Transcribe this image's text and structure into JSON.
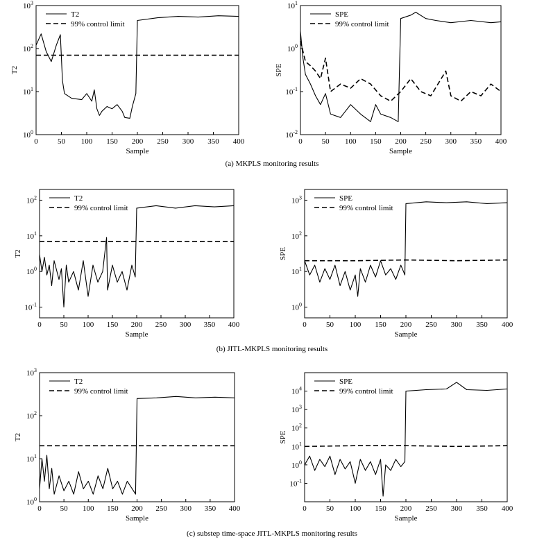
{
  "chart_data": [
    {
      "id": "a-t2",
      "type": "line",
      "panel": "(a)",
      "scale": "log",
      "xlabel": "Sample",
      "ylabel": "T2",
      "xlim": [
        0,
        400
      ],
      "ylim": [
        1,
        1000
      ],
      "xticks": [
        "0",
        "50",
        "100",
        "150",
        "200",
        "250",
        "300",
        "350",
        "400"
      ],
      "yticks": [
        "10^0",
        "10^1",
        "10^2",
        "10^3"
      ],
      "legend_position": "top-left",
      "series": [
        {
          "name": "T2",
          "style": "solid",
          "values": [
            [
              0,
              120
            ],
            [
              10,
              220
            ],
            [
              20,
              85
            ],
            [
              30,
              50
            ],
            [
              40,
              120
            ],
            [
              48,
              210
            ],
            [
              52,
              18
            ],
            [
              56,
              9
            ],
            [
              70,
              7
            ],
            [
              90,
              6.5
            ],
            [
              100,
              9
            ],
            [
              110,
              6
            ],
            [
              115,
              11
            ],
            [
              120,
              4
            ],
            [
              125,
              2.8
            ],
            [
              130,
              3.5
            ],
            [
              140,
              4.5
            ],
            [
              150,
              4
            ],
            [
              160,
              5
            ],
            [
              170,
              3.5
            ],
            [
              175,
              2.5
            ],
            [
              185,
              2.4
            ],
            [
              190,
              4.5
            ],
            [
              197,
              9
            ],
            [
              200,
              450
            ],
            [
              240,
              520
            ],
            [
              280,
              560
            ],
            [
              320,
              540
            ],
            [
              360,
              580
            ],
            [
              400,
              560
            ]
          ]
        },
        {
          "name": "99% control limit",
          "style": "dashed",
          "values": [
            [
              0,
              70
            ],
            [
              400,
              70
            ]
          ]
        }
      ]
    },
    {
      "id": "a-spe",
      "type": "line",
      "panel": "(a)",
      "scale": "log",
      "xlabel": "Sample",
      "ylabel": "SPE",
      "xlim": [
        0,
        400
      ],
      "ylim": [
        0.01,
        10
      ],
      "xticks": [
        "0",
        "50",
        "100",
        "150",
        "200",
        "250",
        "300",
        "350",
        "400"
      ],
      "yticks": [
        "10^-2",
        "10^-1",
        "10^0",
        "10^1"
      ],
      "legend_position": "top-left",
      "series": [
        {
          "name": "SPE",
          "style": "solid",
          "values": [
            [
              0,
              2.5
            ],
            [
              5,
              0.6
            ],
            [
              10,
              0.25
            ],
            [
              20,
              0.15
            ],
            [
              30,
              0.08
            ],
            [
              40,
              0.05
            ],
            [
              50,
              0.09
            ],
            [
              60,
              0.03
            ],
            [
              80,
              0.025
            ],
            [
              100,
              0.05
            ],
            [
              120,
              0.03
            ],
            [
              140,
              0.02
            ],
            [
              150,
              0.05
            ],
            [
              160,
              0.03
            ],
            [
              180,
              0.025
            ],
            [
              195,
              0.02
            ],
            [
              200,
              5
            ],
            [
              220,
              6
            ],
            [
              230,
              7
            ],
            [
              250,
              5
            ],
            [
              270,
              4.5
            ],
            [
              300,
              4
            ],
            [
              340,
              4.5
            ],
            [
              380,
              4
            ],
            [
              400,
              4.2
            ]
          ]
        },
        {
          "name": "99% control limit",
          "style": "dashed",
          "values": [
            [
              0,
              1.5
            ],
            [
              10,
              0.5
            ],
            [
              20,
              0.4
            ],
            [
              30,
              0.3
            ],
            [
              40,
              0.2
            ],
            [
              50,
              0.6
            ],
            [
              60,
              0.1
            ],
            [
              80,
              0.15
            ],
            [
              100,
              0.12
            ],
            [
              120,
              0.2
            ],
            [
              140,
              0.15
            ],
            [
              160,
              0.08
            ],
            [
              180,
              0.06
            ],
            [
              200,
              0.1
            ],
            [
              220,
              0.2
            ],
            [
              240,
              0.1
            ],
            [
              260,
              0.08
            ],
            [
              290,
              0.3
            ],
            [
              300,
              0.08
            ],
            [
              320,
              0.06
            ],
            [
              340,
              0.1
            ],
            [
              360,
              0.08
            ],
            [
              380,
              0.15
            ],
            [
              400,
              0.1
            ]
          ]
        }
      ]
    },
    {
      "id": "b-t2",
      "type": "line",
      "panel": "(b)",
      "scale": "log",
      "xlabel": "Sample",
      "ylabel": "T2",
      "xlim": [
        0,
        400
      ],
      "ylim": [
        0.05,
        200
      ],
      "xticks": [
        "0",
        "50",
        "100",
        "150",
        "200",
        "250",
        "300",
        "350",
        "400"
      ],
      "yticks": [
        "10^-1",
        "10^0",
        "10^1",
        "10^2"
      ],
      "legend_position": "top-left",
      "series": [
        {
          "name": "T2",
          "style": "solid",
          "values": [
            [
              0,
              3
            ],
            [
              5,
              1
            ],
            [
              10,
              2.5
            ],
            [
              15,
              0.8
            ],
            [
              20,
              1.5
            ],
            [
              25,
              0.4
            ],
            [
              30,
              2
            ],
            [
              40,
              0.6
            ],
            [
              45,
              1.2
            ],
            [
              50,
              0.1
            ],
            [
              55,
              1.5
            ],
            [
              60,
              0.5
            ],
            [
              70,
              1
            ],
            [
              80,
              0.3
            ],
            [
              90,
              2
            ],
            [
              100,
              0.2
            ],
            [
              110,
              1.5
            ],
            [
              120,
              0.5
            ],
            [
              130,
              1
            ],
            [
              138,
              9
            ],
            [
              140,
              0.3
            ],
            [
              150,
              1.5
            ],
            [
              160,
              0.5
            ],
            [
              170,
              1
            ],
            [
              180,
              0.3
            ],
            [
              190,
              1.5
            ],
            [
              197,
              0.7
            ],
            [
              200,
              60
            ],
            [
              240,
              70
            ],
            [
              280,
              60
            ],
            [
              320,
              70
            ],
            [
              360,
              65
            ],
            [
              400,
              70
            ]
          ]
        },
        {
          "name": "99% control limit",
          "style": "dashed",
          "values": [
            [
              0,
              7
            ],
            [
              400,
              7
            ]
          ]
        }
      ]
    },
    {
      "id": "b-spe",
      "type": "line",
      "panel": "(b)",
      "scale": "log",
      "xlabel": "Sample",
      "ylabel": "SPE",
      "xlim": [
        0,
        400
      ],
      "ylim": [
        0.5,
        2000
      ],
      "xticks": [
        "0",
        "50",
        "100",
        "150",
        "200",
        "250",
        "300",
        "350",
        "400"
      ],
      "yticks": [
        "10^0",
        "10^1",
        "10^2",
        "10^3"
      ],
      "legend_position": "top-left",
      "series": [
        {
          "name": "SPE",
          "style": "solid",
          "values": [
            [
              0,
              20
            ],
            [
              10,
              8
            ],
            [
              20,
              15
            ],
            [
              30,
              5
            ],
            [
              40,
              12
            ],
            [
              50,
              6
            ],
            [
              60,
              15
            ],
            [
              70,
              4
            ],
            [
              80,
              10
            ],
            [
              90,
              3
            ],
            [
              100,
              8
            ],
            [
              105,
              2
            ],
            [
              110,
              12
            ],
            [
              120,
              5
            ],
            [
              130,
              15
            ],
            [
              140,
              7
            ],
            [
              150,
              20
            ],
            [
              160,
              8
            ],
            [
              170,
              12
            ],
            [
              180,
              6
            ],
            [
              190,
              15
            ],
            [
              198,
              8
            ],
            [
              200,
              800
            ],
            [
              240,
              900
            ],
            [
              280,
              850
            ],
            [
              320,
              900
            ],
            [
              360,
              800
            ],
            [
              400,
              850
            ]
          ]
        },
        {
          "name": "99% control limit",
          "style": "dashed",
          "values": [
            [
              0,
              20
            ],
            [
              100,
              20
            ],
            [
              200,
              21
            ],
            [
              300,
              20
            ],
            [
              400,
              21
            ]
          ]
        }
      ]
    },
    {
      "id": "c-t2",
      "type": "line",
      "panel": "(c)",
      "scale": "log",
      "xlabel": "Sample",
      "ylabel": "T2",
      "xlim": [
        0,
        400
      ],
      "ylim": [
        1,
        1000
      ],
      "xticks": [
        "0",
        "50",
        "100",
        "150",
        "200",
        "250",
        "300",
        "350",
        "400"
      ],
      "yticks": [
        "10^0",
        "10^1",
        "10^2",
        "10^3"
      ],
      "legend_position": "top-left",
      "series": [
        {
          "name": "T2",
          "style": "solid",
          "values": [
            [
              0,
              2
            ],
            [
              5,
              10
            ],
            [
              10,
              3
            ],
            [
              15,
              12
            ],
            [
              20,
              2
            ],
            [
              25,
              6
            ],
            [
              30,
              1.5
            ],
            [
              40,
              4
            ],
            [
              50,
              1.8
            ],
            [
              60,
              3
            ],
            [
              70,
              1.5
            ],
            [
              80,
              5
            ],
            [
              90,
              2
            ],
            [
              100,
              3
            ],
            [
              110,
              1.5
            ],
            [
              120,
              4
            ],
            [
              130,
              2
            ],
            [
              140,
              6
            ],
            [
              150,
              2
            ],
            [
              160,
              3
            ],
            [
              170,
              1.5
            ],
            [
              180,
              3
            ],
            [
              190,
              2
            ],
            [
              197,
              1.5
            ],
            [
              200,
              250
            ],
            [
              240,
              260
            ],
            [
              280,
              280
            ],
            [
              320,
              260
            ],
            [
              360,
              270
            ],
            [
              400,
              260
            ]
          ]
        },
        {
          "name": "99% control limit",
          "style": "dashed",
          "values": [
            [
              0,
              20
            ],
            [
              400,
              20
            ]
          ]
        }
      ]
    },
    {
      "id": "c-spe",
      "type": "line",
      "panel": "(c)",
      "scale": "log",
      "xlabel": "Sample",
      "ylabel": "SPE",
      "xlim": [
        0,
        400
      ],
      "ylim": [
        0.01,
        100000
      ],
      "xticks": [
        "0",
        "50",
        "100",
        "150",
        "200",
        "250",
        "300",
        "350",
        "400"
      ],
      "yticks": [
        "10^-1",
        "10^0",
        "10^1",
        "10^2",
        "10^3",
        "10^4"
      ],
      "legend_position": "top-left",
      "series": [
        {
          "name": "SPE",
          "style": "solid",
          "values": [
            [
              0,
              1
            ],
            [
              10,
              3
            ],
            [
              20,
              0.5
            ],
            [
              30,
              2
            ],
            [
              40,
              0.8
            ],
            [
              50,
              3
            ],
            [
              60,
              0.3
            ],
            [
              70,
              2
            ],
            [
              80,
              0.6
            ],
            [
              90,
              1.5
            ],
            [
              100,
              0.1
            ],
            [
              110,
              2
            ],
            [
              120,
              0.5
            ],
            [
              130,
              1.5
            ],
            [
              140,
              0.3
            ],
            [
              150,
              2
            ],
            [
              155,
              0.02
            ],
            [
              160,
              1
            ],
            [
              170,
              0.5
            ],
            [
              180,
              2
            ],
            [
              190,
              0.8
            ],
            [
              198,
              1.5
            ],
            [
              200,
              10000
            ],
            [
              240,
              12000
            ],
            [
              280,
              13000
            ],
            [
              300,
              30000
            ],
            [
              320,
              12000
            ],
            [
              360,
              11000
            ],
            [
              400,
              13000
            ]
          ]
        },
        {
          "name": "99% control limit",
          "style": "dashed",
          "values": [
            [
              0,
              10
            ],
            [
              100,
              11
            ],
            [
              200,
              11
            ],
            [
              300,
              10
            ],
            [
              400,
              11
            ]
          ]
        }
      ]
    }
  ],
  "captions": {
    "a": "(a) MKPLS monitoring results",
    "b": "(b) JITL-MKPLS monitoring results",
    "c": "(c) substep time-space JITL-MKPLS monitoring results"
  }
}
